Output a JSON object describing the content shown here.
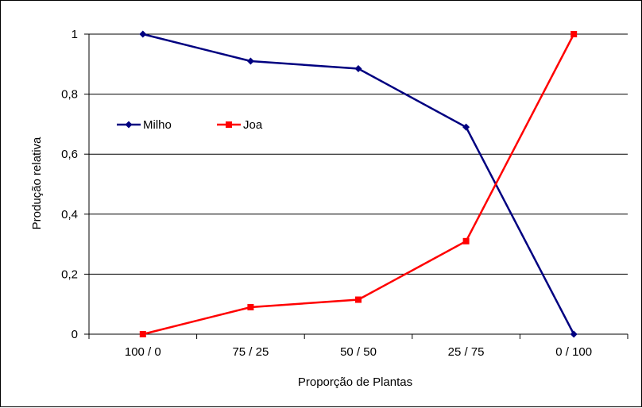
{
  "chart_data": {
    "type": "line",
    "categories": [
      "100 / 0",
      "75 / 25",
      "50 / 50",
      "25 / 75",
      "0 / 100"
    ],
    "series": [
      {
        "name": "Milho",
        "values": [
          1.0,
          0.91,
          0.885,
          0.69,
          0.0
        ],
        "color": "#000080",
        "marker": "diamond"
      },
      {
        "name": "Joa",
        "values": [
          0.0,
          0.09,
          0.115,
          0.31,
          1.0
        ],
        "color": "#ff0000",
        "marker": "square"
      }
    ],
    "xlabel": "Proporção de Plantas",
    "ylabel": "Produção relativa",
    "ylim": [
      0,
      1
    ],
    "yticks": [
      0,
      0.2,
      0.4,
      0.6,
      0.8,
      1
    ],
    "ytick_labels": [
      "0",
      "0,2",
      "0,4",
      "0,6",
      "0,8",
      "1"
    ],
    "grid": true,
    "legend": "upper-left inside plot"
  }
}
